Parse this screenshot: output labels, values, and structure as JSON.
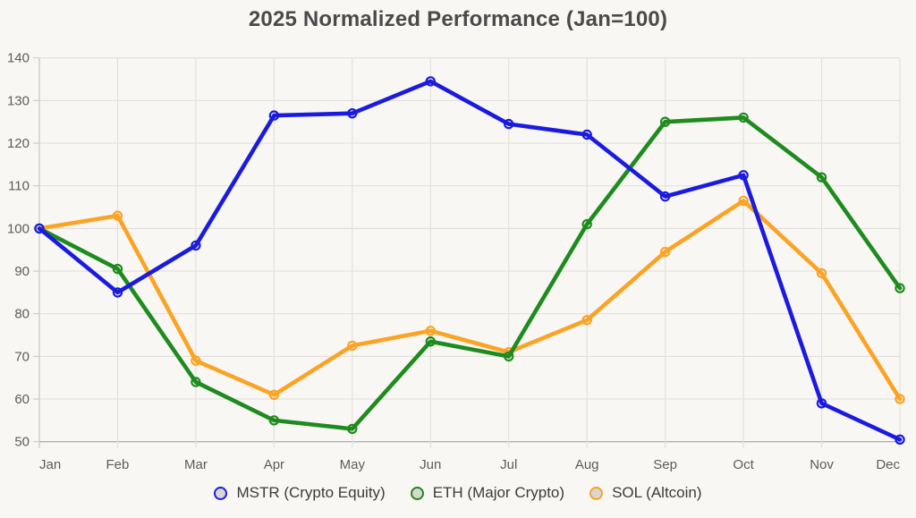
{
  "chart_data": {
    "type": "line",
    "title": "2025 Normalized Performance (Jan=100)",
    "categories": [
      "Jan",
      "Feb",
      "Mar",
      "Apr",
      "May",
      "Jun",
      "Jul",
      "Aug",
      "Sep",
      "Oct",
      "Nov",
      "Dec"
    ],
    "series": [
      {
        "name": "MSTR (Crypto Equity)",
        "key": "mstr",
        "color": "#1b1be0",
        "values": [
          100,
          85,
          96,
          126.5,
          127,
          134.5,
          124.5,
          122,
          107.5,
          112.5,
          59,
          50.5
        ]
      },
      {
        "name": "ETH (Major Crypto)",
        "key": "eth",
        "color": "#1e8b1e",
        "values": [
          100,
          90.5,
          64,
          55,
          53,
          73.5,
          70,
          101,
          125,
          126,
          112,
          86
        ]
      },
      {
        "name": "SOL (Altcoin)",
        "key": "sol",
        "color": "#fba325",
        "values": [
          100,
          103,
          69,
          61,
          72.5,
          76,
          71,
          78.5,
          94.5,
          106.5,
          89.5,
          60
        ]
      }
    ],
    "xlabel": "",
    "ylabel": "",
    "ylim": [
      50,
      140
    ],
    "y_ticks": [
      50,
      60,
      70,
      80,
      90,
      100,
      110,
      120,
      130,
      140
    ],
    "grid": "on",
    "legend_position": "bottom",
    "colors": {
      "background": "#f8f7f4",
      "grid_line": "#e3e1dd",
      "axis_line": "#b3b0ab",
      "tick_line": "#c9c6c1",
      "axis_text": "#5c5c5c",
      "title_text": "#4a4a4a",
      "legend_text": "#3b3b3b",
      "legend_swatch_fill": "#d9d7d3"
    }
  }
}
